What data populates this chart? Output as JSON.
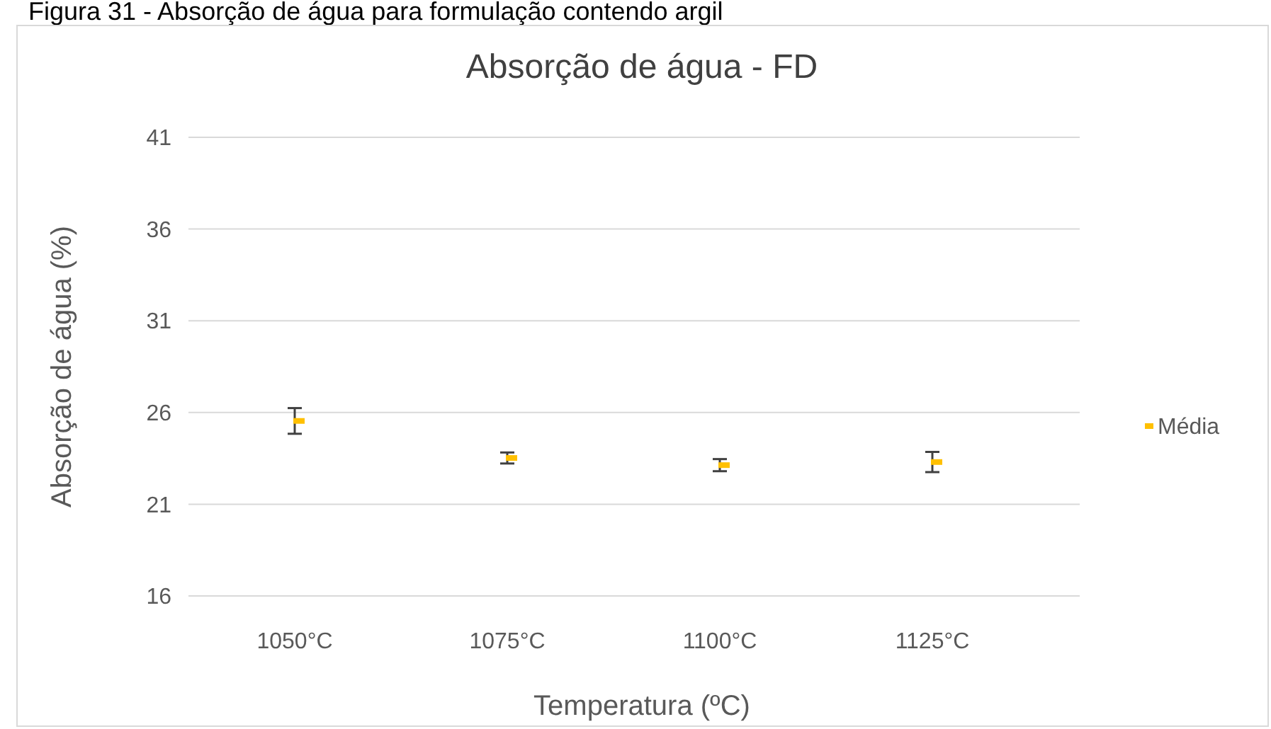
{
  "chart_data": {
    "type": "scatter",
    "title": "Absorção de água - FD",
    "xlabel": "Temperatura (ºC)",
    "ylabel": "Absorção de água (%)",
    "annotations": [
      "Figura 31 - Absorção de água para formulação contendo argil"
    ],
    "categories": [
      "1050°C",
      "1075°C",
      "1100°C",
      "1125°C"
    ],
    "series": [
      {
        "name": "Média",
        "color": "#ffc000",
        "values": [
          25.54,
          23.52,
          23.13,
          23.3
        ],
        "errors": [
          0.7,
          0.3,
          0.33,
          0.55
        ]
      }
    ],
    "ylim": [
      16,
      41
    ],
    "yticks": [
      16,
      21,
      26,
      31,
      36,
      41
    ],
    "grid": "y",
    "legend": "right",
    "marker": "square"
  }
}
